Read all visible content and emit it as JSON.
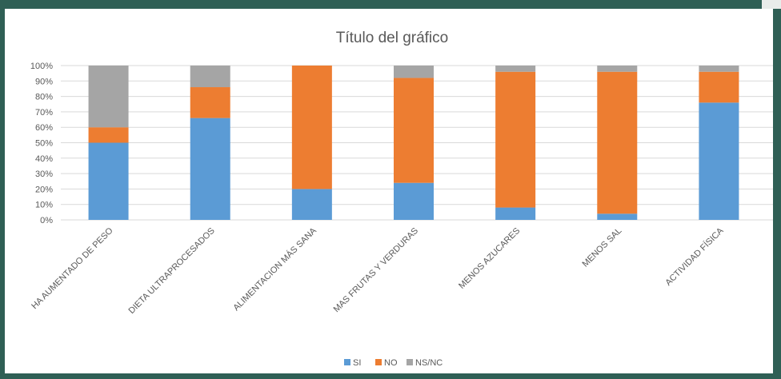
{
  "chart_data": {
    "type": "bar",
    "stacked": true,
    "title": "Título del gráfico",
    "xlabel": "",
    "ylabel": "",
    "ylim": [
      0,
      100
    ],
    "yticks": [
      "0%",
      "10%",
      "20%",
      "30%",
      "40%",
      "50%",
      "60%",
      "70%",
      "80%",
      "90%",
      "100%"
    ],
    "grid": true,
    "legend_position": "bottom",
    "categories": [
      "HA AUMENTADO DE PESO",
      "DIETA ULTRAPROCESADOS",
      "ALIMENTACION MÁS SANA",
      "MAS FRUTAS Y VERDURAS",
      "MENOS AZUCARES",
      "MENOS SAL",
      "ACTIVIDAD FÍSICA"
    ],
    "series": [
      {
        "name": "SI",
        "color": "#5b9bd5",
        "values": [
          50,
          66,
          20,
          24,
          8,
          4,
          76
        ]
      },
      {
        "name": "NO",
        "color": "#ed7d31",
        "values": [
          10,
          20,
          80,
          68,
          88,
          92,
          20
        ]
      },
      {
        "name": "NS/NC",
        "color": "#a5a5a5",
        "values": [
          40,
          14,
          0,
          8,
          4,
          4,
          4
        ]
      }
    ]
  }
}
